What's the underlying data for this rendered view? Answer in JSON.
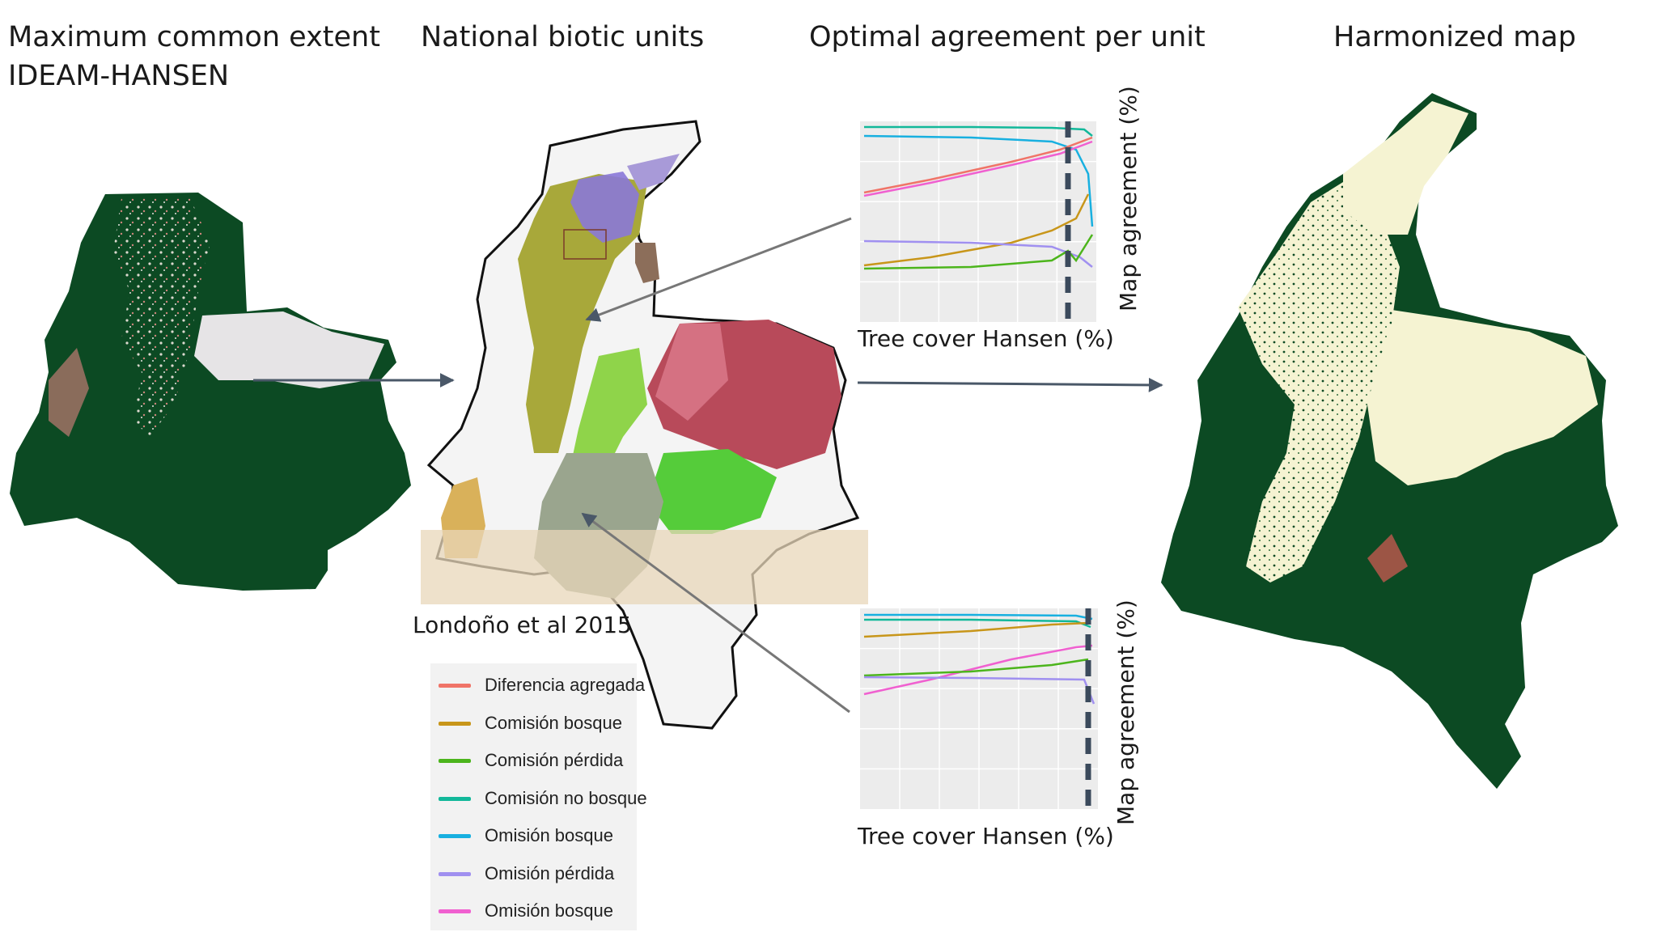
{
  "titles": {
    "panel1": "Maximum common extent",
    "panel1_line2": "IDEAM-HANSEN",
    "panel2": "National biotic units",
    "panel3": "Optimal agreement per unit",
    "panel4": "Harmonized map"
  },
  "credit": "Londoño et al 2015",
  "charts": {
    "top": {
      "xlabel": "Tree cover Hansen (%)",
      "ylabel": "Map agreement (%)"
    },
    "bottom": {
      "xlabel": "Tree cover Hansen (%)",
      "ylabel": "Map agreement (%)"
    }
  },
  "legend": [
    {
      "label": "Diferencia agregada",
      "color": "#f07468"
    },
    {
      "label": "Comisión bosque",
      "color": "#c8961a"
    },
    {
      "label": "Comisión pérdida",
      "color": "#4cb51c"
    },
    {
      "label": "Comisión no bosque",
      "color": "#12b89a"
    },
    {
      "label": "Omisión  bosque",
      "color": "#18b0e0"
    },
    {
      "label": "Omisión pérdida",
      "color": "#a090f0"
    },
    {
      "label": "Omisión bosque",
      "color": "#f060d0"
    }
  ],
  "colors": {
    "forest": "#0c4a23",
    "nonforest_pale": "#f5f3d2",
    "deforest": "#d98880",
    "arrow": "#4a5868",
    "threshold": "#3b4a5c",
    "chart_panel": "#ececec"
  }
}
